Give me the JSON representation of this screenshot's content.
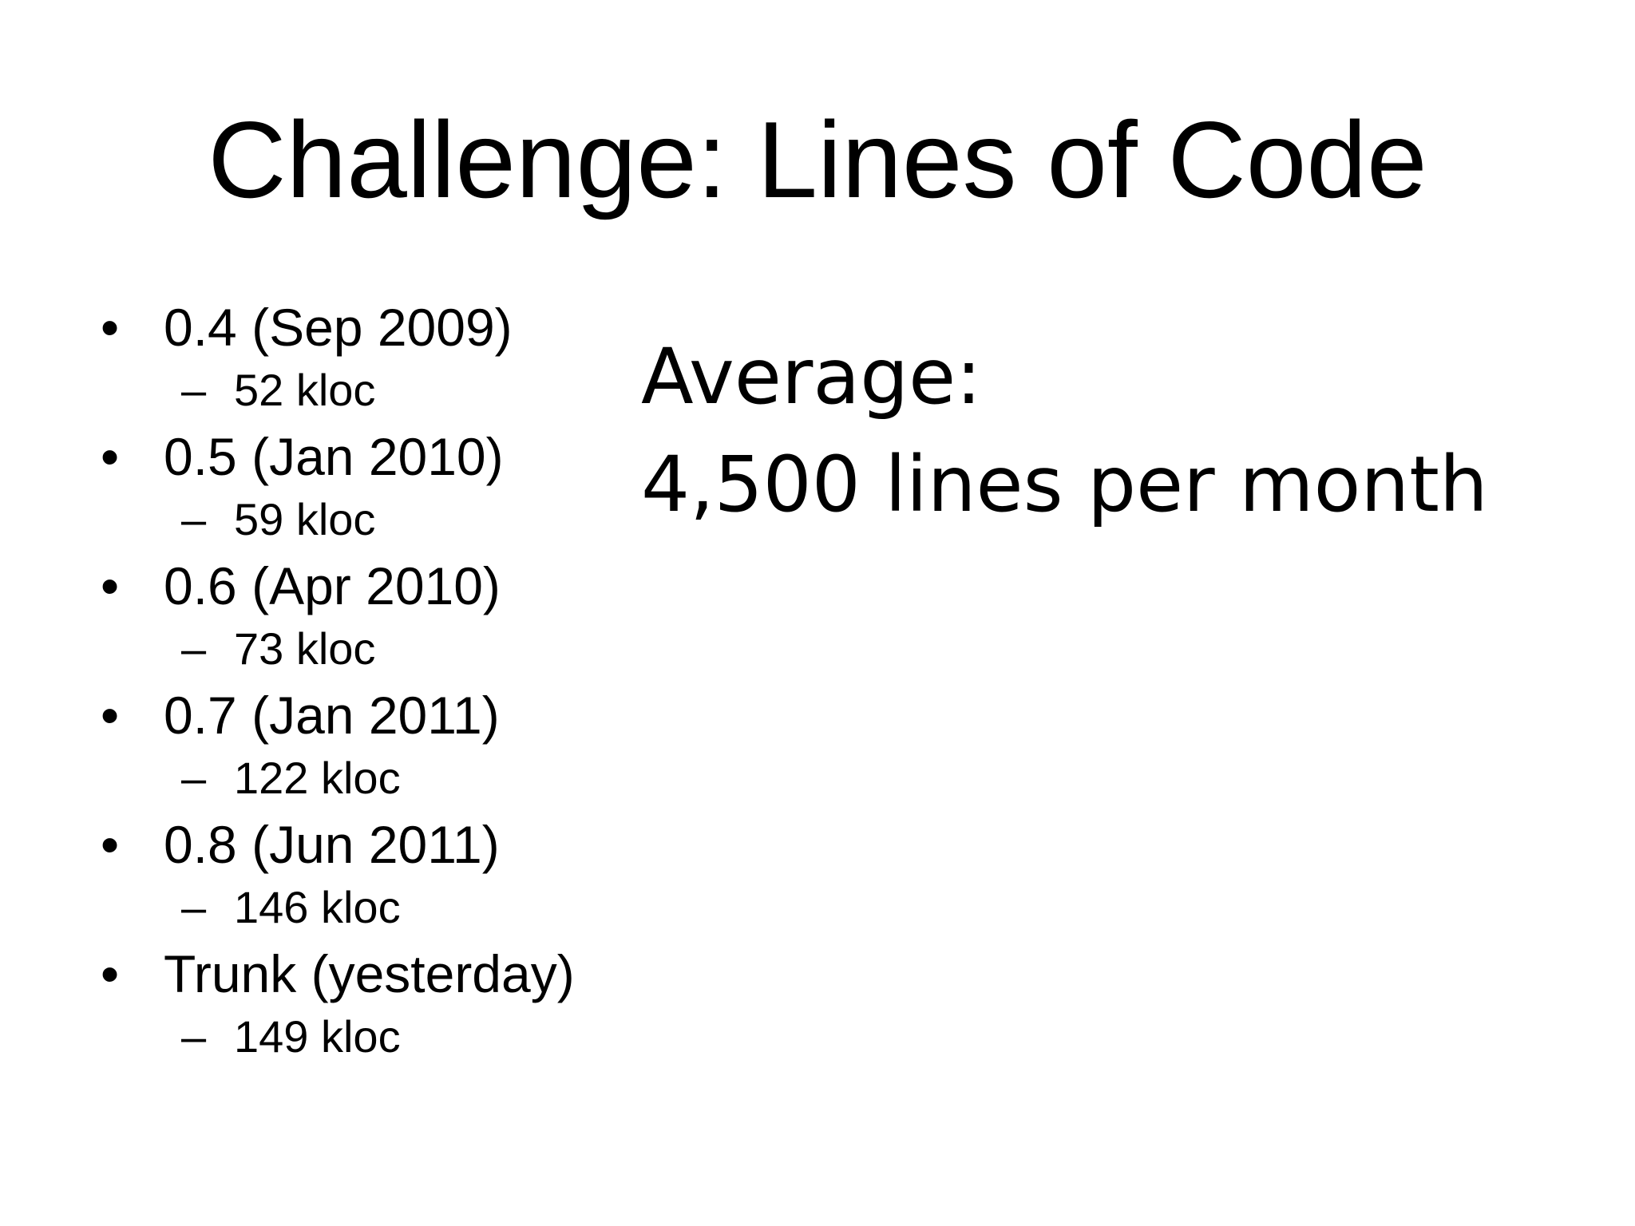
{
  "title": "Challenge: Lines of Code",
  "items": [
    {
      "label": "0.4 (Sep 2009)",
      "sub": "52 kloc"
    },
    {
      "label": "0.5 (Jan 2010)",
      "sub": "59 kloc"
    },
    {
      "label": "0.6 (Apr 2010)",
      "sub": "73 kloc"
    },
    {
      "label": "0.7 (Jan 2011)",
      "sub": "122 kloc"
    },
    {
      "label": "0.8 (Jun 2011)",
      "sub": "146 kloc"
    },
    {
      "label": "Trunk (yesterday)",
      "sub": "149 kloc"
    }
  ],
  "note": [
    "Average:",
    "4,500 lines per month"
  ]
}
